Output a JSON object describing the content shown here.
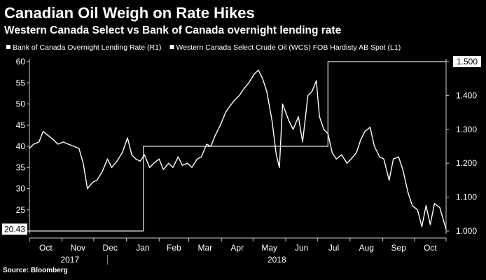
{
  "header": {
    "title": "Canadian Oil Weigh on Rate Hikes",
    "subtitle": "Western Canada Select vs Bank of Canada overnight lending rate"
  },
  "footer": {
    "source": "Source: Bloomberg"
  },
  "colors": {
    "background": "#000000",
    "series": "#ffffff",
    "axis": "#cccccc",
    "text": "#ffffff",
    "last_value_box": "#ffffff"
  },
  "chart_data": {
    "type": "line",
    "grid": false,
    "legend_position": "top-left",
    "x_tick_labels": [
      "Oct",
      "Nov",
      "Dec",
      "Jan",
      "Feb",
      "Mar",
      "Apr",
      "May",
      "Jun",
      "Jul",
      "Aug",
      "Sep",
      "Oct"
    ],
    "x_year_labels": [
      "2017",
      "2018"
    ],
    "x_range": [
      "2017-10-01",
      "2018-10-31"
    ],
    "y_left": {
      "range": [
        20,
        60
      ],
      "ticks": [
        20,
        25,
        30,
        35,
        40,
        45,
        50,
        55,
        60
      ],
      "label": ""
    },
    "y_right": {
      "range": [
        1.0,
        1.5
      ],
      "ticks": [
        "1.000",
        "1.100",
        "1.200",
        "1.300",
        "1.400",
        "1.500"
      ],
      "label": ""
    },
    "series": [
      {
        "name": "Bank of Canada Overnight Lending Rate",
        "axis": "right",
        "axis_tag": "(R1)",
        "last_value": "1.500",
        "x": [
          "2017-10-01",
          "2018-01-17",
          "2018-01-17",
          "2018-07-11",
          "2018-07-11",
          "2018-10-31"
        ],
        "y": [
          1.0,
          1.0,
          1.25,
          1.25,
          1.5,
          1.5
        ]
      },
      {
        "name": "Western Canada Select Crude Oil (WCS) FOB Hardisty AB Spot",
        "axis": "left",
        "axis_tag": "(L1)",
        "last_value": "20.43",
        "x": [
          "2017-10-01",
          "2017-10-05",
          "2017-10-10",
          "2017-10-14",
          "2017-10-19",
          "2017-10-24",
          "2017-10-28",
          "2017-11-02",
          "2017-11-07",
          "2017-11-12",
          "2017-11-17",
          "2017-11-21",
          "2017-11-25",
          "2017-11-30",
          "2017-12-04",
          "2017-12-09",
          "2017-12-14",
          "2017-12-18",
          "2017-12-23",
          "2017-12-28",
          "2018-01-02",
          "2018-01-06",
          "2018-01-10",
          "2018-01-14",
          "2018-01-18",
          "2018-01-23",
          "2018-01-27",
          "2018-02-01",
          "2018-02-05",
          "2018-02-10",
          "2018-02-14",
          "2018-02-19",
          "2018-02-23",
          "2018-02-28",
          "2018-03-04",
          "2018-03-09",
          "2018-03-13",
          "2018-03-18",
          "2018-03-22",
          "2018-03-26",
          "2018-03-31",
          "2018-04-05",
          "2018-04-09",
          "2018-04-14",
          "2018-04-18",
          "2018-04-22",
          "2018-04-27",
          "2018-05-02",
          "2018-05-06",
          "2018-05-10",
          "2018-05-14",
          "2018-05-19",
          "2018-05-23",
          "2018-05-26",
          "2018-05-29",
          "2018-06-01",
          "2018-06-04",
          "2018-06-08",
          "2018-06-13",
          "2018-06-17",
          "2018-06-22",
          "2018-06-26",
          "2018-06-30",
          "2018-07-03",
          "2018-07-07",
          "2018-07-11",
          "2018-07-15",
          "2018-07-19",
          "2018-07-24",
          "2018-07-29",
          "2018-08-02",
          "2018-08-07",
          "2018-08-11",
          "2018-08-15",
          "2018-08-20",
          "2018-08-24",
          "2018-08-29",
          "2018-09-02",
          "2018-09-07",
          "2018-09-11",
          "2018-09-16",
          "2018-09-20",
          "2018-09-25",
          "2018-09-29",
          "2018-10-04",
          "2018-10-08",
          "2018-10-12",
          "2018-10-16",
          "2018-10-20",
          "2018-10-25",
          "2018-10-31"
        ],
        "y": [
          39.5,
          40.5,
          41,
          43.5,
          42.5,
          41.5,
          40.5,
          41,
          40.5,
          40,
          39.5,
          36,
          30,
          31.5,
          32,
          34,
          37,
          35,
          36.5,
          38.5,
          42,
          38,
          37,
          36.5,
          38,
          35,
          36,
          37,
          34.5,
          36,
          35,
          37.5,
          35.5,
          36,
          35,
          37,
          37.5,
          40.5,
          40,
          42.5,
          45,
          48,
          49.5,
          51,
          52,
          53.5,
          55,
          57,
          58,
          56,
          53,
          46,
          38,
          35,
          50,
          48,
          46,
          44,
          47,
          41,
          52,
          53,
          55.5,
          47,
          44,
          43,
          38.5,
          37,
          38,
          36,
          37,
          38.5,
          41.5,
          43.5,
          44.5,
          40,
          37.5,
          37,
          32,
          37,
          37.5,
          34.5,
          29,
          26,
          25,
          21,
          26,
          21.5,
          26.5,
          25.5,
          20.43
        ]
      }
    ]
  }
}
